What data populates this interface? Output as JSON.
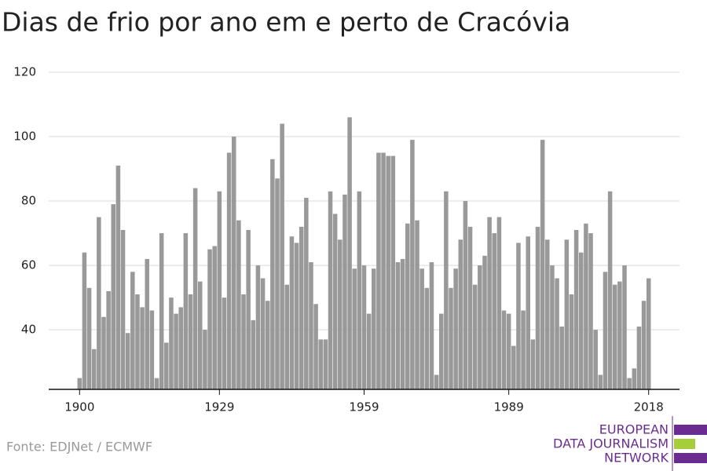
{
  "chart_data": {
    "type": "bar",
    "title": "Dias de frio por ano em e perto de Cracóvia",
    "source": "Fonte: EDJNet / ECMWF",
    "logo": [
      "EUROPEAN",
      "DATA JOURNALISM",
      "NETWORK"
    ],
    "color": "#999999",
    "x": [
      1900,
      1901,
      1902,
      1903,
      1904,
      1905,
      1906,
      1907,
      1908,
      1909,
      1910,
      1911,
      1912,
      1913,
      1914,
      1915,
      1916,
      1917,
      1918,
      1919,
      1920,
      1921,
      1922,
      1923,
      1924,
      1925,
      1926,
      1927,
      1928,
      1929,
      1930,
      1931,
      1932,
      1933,
      1934,
      1935,
      1936,
      1937,
      1938,
      1939,
      1940,
      1941,
      1942,
      1943,
      1944,
      1945,
      1946,
      1947,
      1948,
      1949,
      1950,
      1951,
      1952,
      1953,
      1954,
      1955,
      1956,
      1957,
      1958,
      1959,
      1960,
      1961,
      1962,
      1963,
      1964,
      1965,
      1966,
      1967,
      1968,
      1969,
      1970,
      1971,
      1972,
      1973,
      1974,
      1975,
      1976,
      1977,
      1978,
      1979,
      1980,
      1981,
      1982,
      1983,
      1984,
      1985,
      1986,
      1987,
      1988,
      1989,
      1990,
      1991,
      1992,
      1993,
      1994,
      1995,
      1996,
      1997,
      1998,
      1999,
      2000,
      2001,
      2002,
      2003,
      2004,
      2005,
      2006,
      2007,
      2008,
      2009,
      2010,
      2011,
      2012,
      2013,
      2014,
      2015,
      2016,
      2017,
      2018
    ],
    "values": [
      25,
      64,
      53,
      34,
      75,
      44,
      52,
      79,
      91,
      71,
      39,
      58,
      51,
      47,
      62,
      46,
      25,
      70,
      36,
      50,
      45,
      47,
      70,
      51,
      84,
      55,
      40,
      65,
      66,
      83,
      50,
      95,
      100,
      74,
      51,
      71,
      43,
      60,
      56,
      49,
      93,
      87,
      104,
      54,
      69,
      67,
      72,
      81,
      61,
      48,
      37,
      37,
      83,
      76,
      68,
      82,
      106,
      59,
      83,
      60,
      45,
      59,
      95,
      95,
      94,
      94,
      61,
      62,
      73,
      99,
      74,
      59,
      53,
      61,
      26,
      45,
      83,
      53,
      59,
      68,
      80,
      72,
      54,
      60,
      63,
      75,
      70,
      75,
      46,
      45,
      35,
      67,
      46,
      69,
      37,
      72,
      99,
      68,
      60,
      56,
      41,
      68,
      51,
      71,
      64,
      73,
      70,
      40,
      26,
      58,
      83,
      54,
      55,
      60,
      25,
      28,
      41,
      49,
      56
    ],
    "xlim": [
      1893.6,
      2024.4
    ],
    "xticks": [
      1900,
      1929,
      1959,
      1989,
      2018
    ],
    "ylim": [
      21.5,
      120
    ],
    "yticks": [
      40,
      60,
      80,
      100,
      120
    ],
    "grid": true
  }
}
